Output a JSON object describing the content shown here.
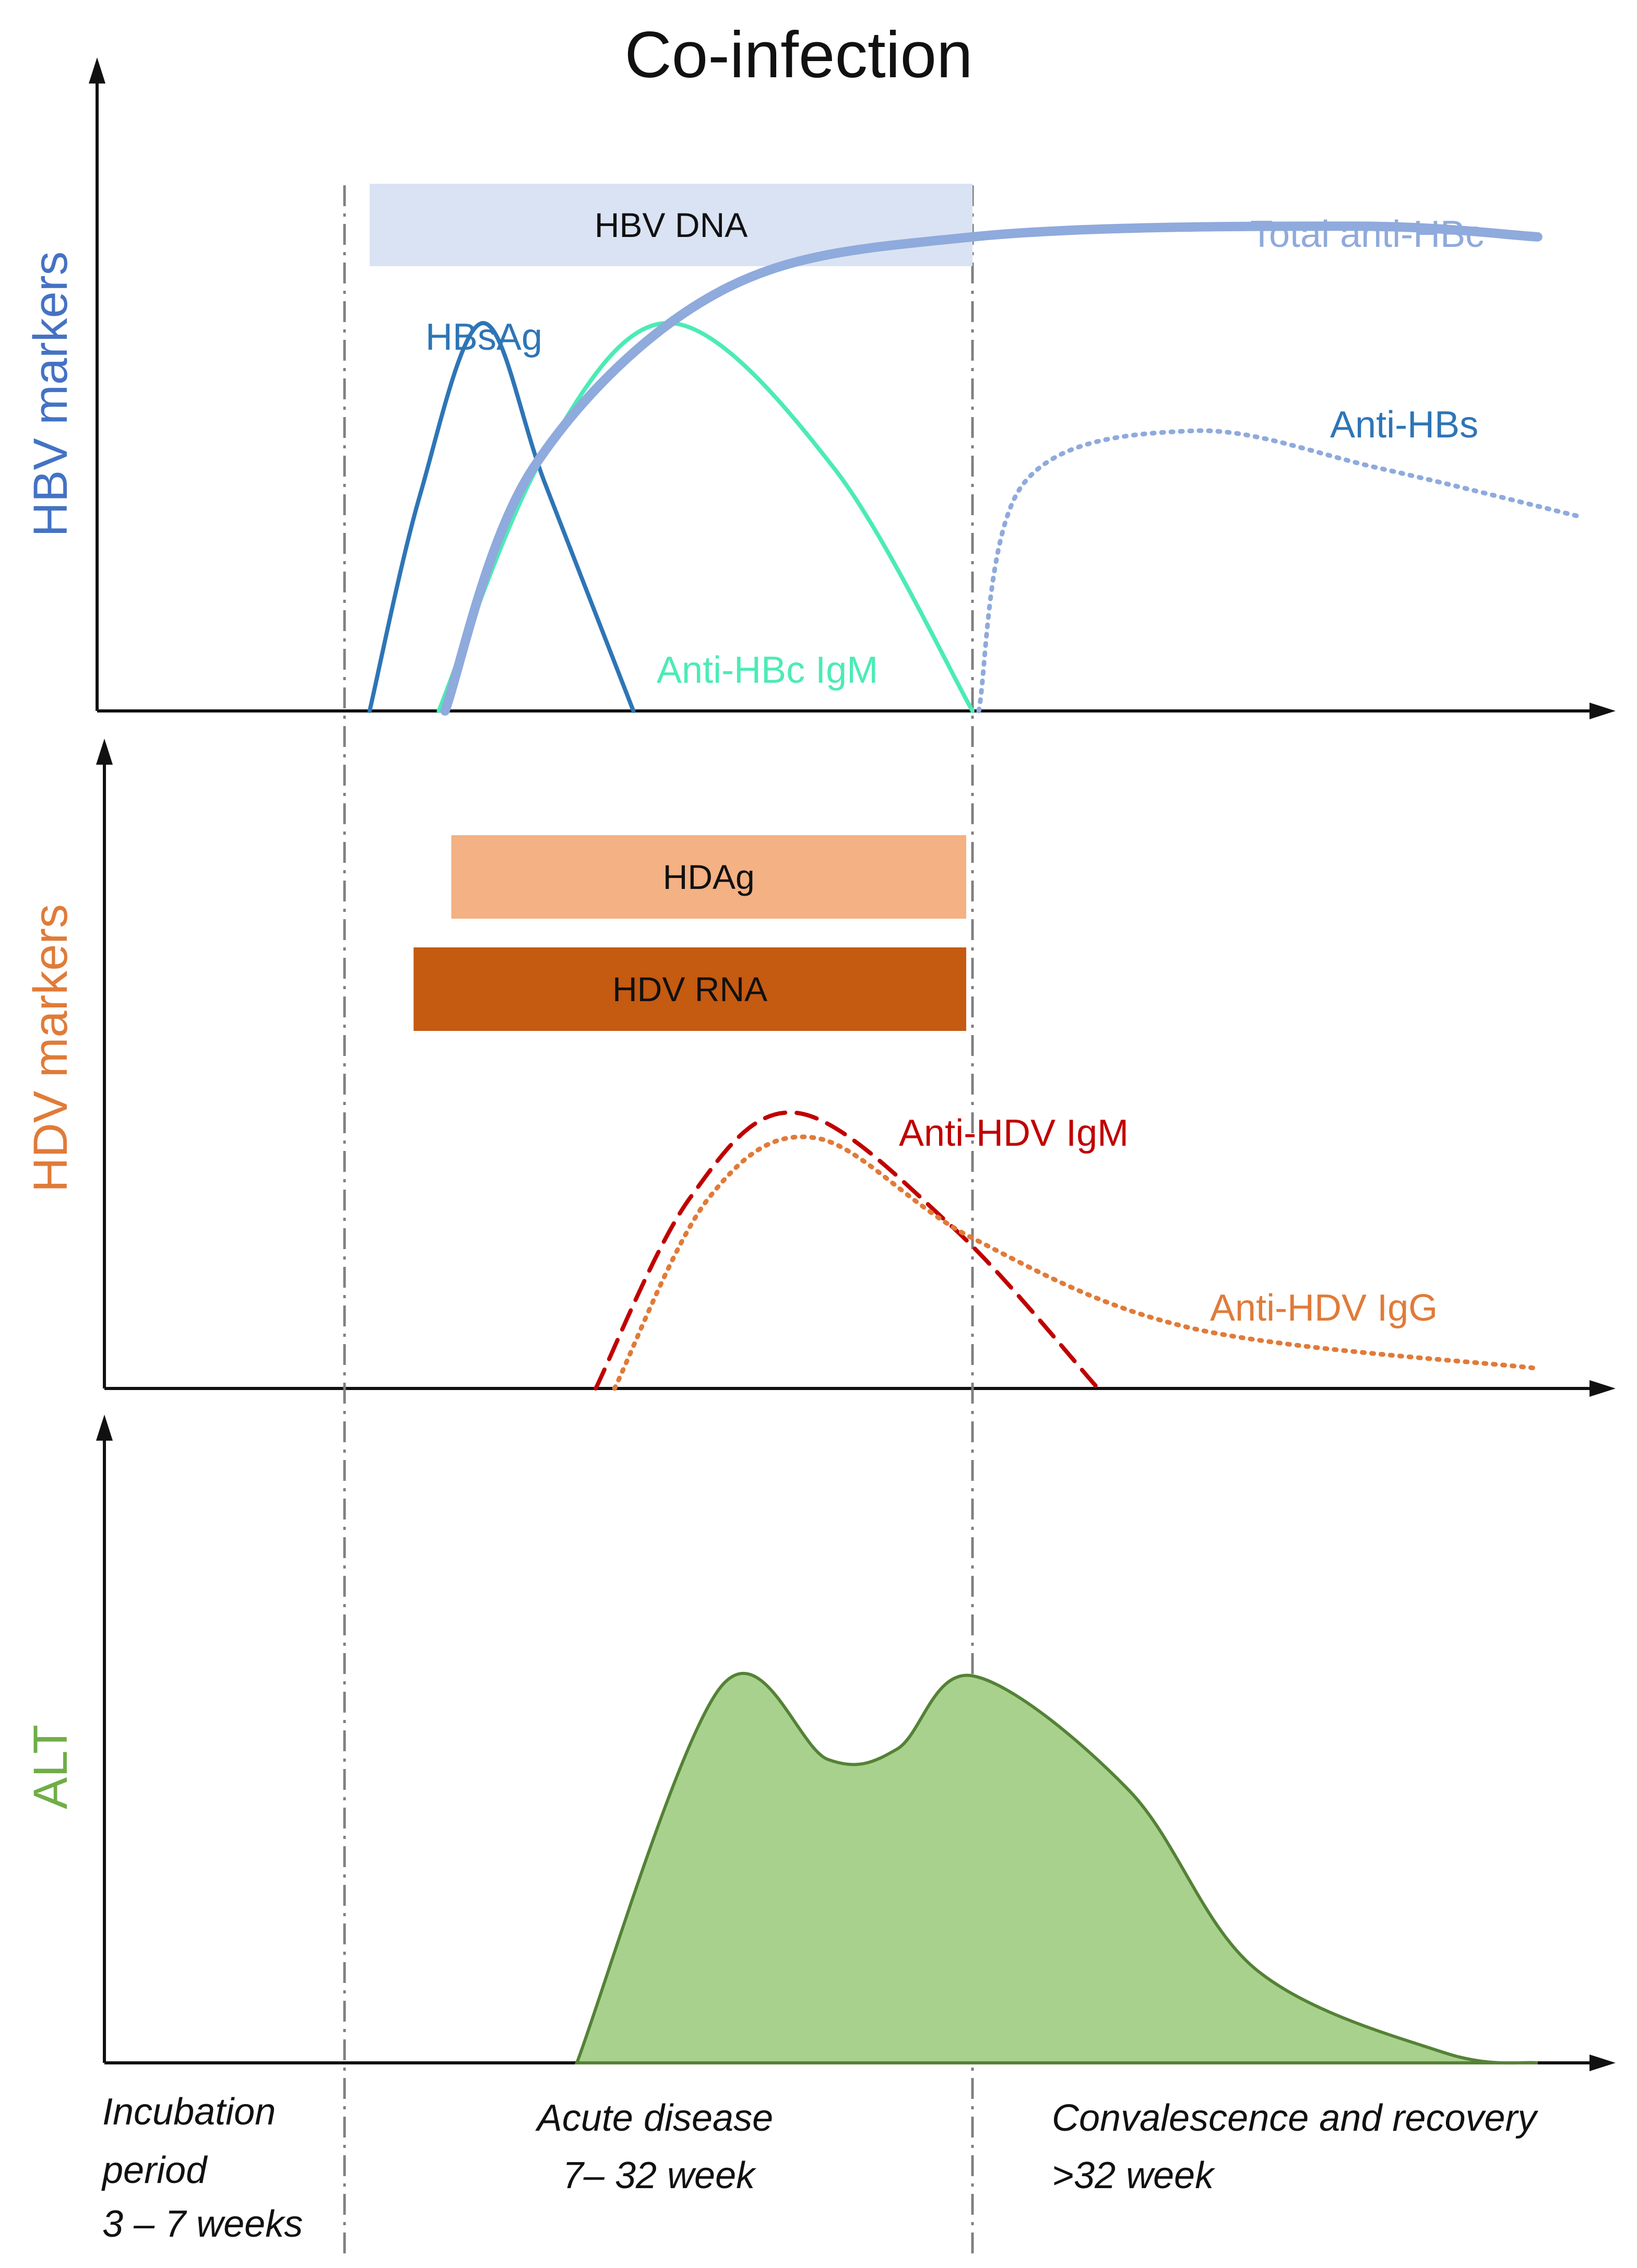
{
  "chart_data": {
    "type": "line",
    "title": "Co-infection",
    "phases": [
      {
        "name": "incubation",
        "lines": [
          "Incubation",
          "period",
          "3 – 7 weeks"
        ]
      },
      {
        "name": "acute",
        "lines": [
          "Acute disease",
          "7– 32 week"
        ]
      },
      {
        "name": "convalescence",
        "lines": [
          "Convalescence and recovery",
          ">32 week"
        ]
      }
    ],
    "panels": [
      {
        "ylabel": "HBV markers",
        "ylabel_color": "#4472C4",
        "bars": [
          {
            "label": "HBV DNA",
            "start": 0.04,
            "end": 1.0,
            "color": "#DAE3F3",
            "text_color": "#111111"
          }
        ],
        "series": [
          {
            "name": "HBsAg",
            "color": "#2E75B6",
            "style": "solid",
            "points": [
              [
                0.04,
                0
              ],
              [
                0.12,
                0.4
              ],
              [
                0.22,
                0.72
              ],
              [
                0.32,
                0.42
              ],
              [
                0.46,
                0
              ]
            ]
          },
          {
            "name": "Anti-HBc IgM",
            "color": "#4CEBB5",
            "style": "solid",
            "points": [
              [
                0.15,
                0
              ],
              [
                0.32,
                0.48
              ],
              [
                0.52,
                0.72
              ],
              [
                0.78,
                0.45
              ],
              [
                1.0,
                0
              ]
            ]
          },
          {
            "name": "Total anti-HBc",
            "color": "#8FAADC",
            "style": "thick",
            "points": [
              [
                0.16,
                0
              ],
              [
                0.3,
                0.45
              ],
              [
                0.6,
                0.78
              ],
              [
                1.0,
                0.88
              ],
              [
                1.6,
                0.9
              ],
              [
                1.9,
                0.88
              ]
            ]
          },
          {
            "name": "Anti-HBs",
            "color": "#8FAADC",
            "style": "dotted",
            "points": [
              [
                1.01,
                0
              ],
              [
                1.08,
                0.42
              ],
              [
                1.35,
                0.52
              ],
              [
                1.65,
                0.45
              ],
              [
                1.97,
                0.36
              ]
            ]
          }
        ]
      },
      {
        "ylabel": "HDV markers",
        "ylabel_color": "#E07B39",
        "bars": [
          {
            "label": "HDAg",
            "start": 0.17,
            "end": 0.99,
            "color": "#F4B183",
            "text_color": "#111111"
          },
          {
            "label": "HDV RNA",
            "start": 0.11,
            "end": 0.99,
            "color": "#C55A11",
            "text_color": "#111111"
          }
        ],
        "series": [
          {
            "name": "Anti-HDV IgM",
            "color": "#C00000",
            "style": "dashed",
            "points": [
              [
                0.4,
                0
              ],
              [
                0.55,
                0.38
              ],
              [
                0.72,
                0.55
              ],
              [
                0.97,
                0.32
              ],
              [
                1.2,
                0
              ]
            ]
          },
          {
            "name": "Anti-HDV IgG",
            "color": "#E07B39",
            "style": "dotted",
            "points": [
              [
                0.43,
                0
              ],
              [
                0.58,
                0.38
              ],
              [
                0.75,
                0.5
              ],
              [
                1.0,
                0.3
              ],
              [
                1.35,
                0.12
              ],
              [
                1.9,
                0.04
              ]
            ]
          }
        ]
      },
      {
        "ylabel": "ALT",
        "ylabel_color": "#70AD47",
        "fill_color": "#A9D18E",
        "stroke_color": "#548235",
        "series": [
          {
            "name": "ALT",
            "style": "area",
            "points": [
              [
                0.37,
                0
              ],
              [
                0.6,
                0.72
              ],
              [
                0.77,
                0.58
              ],
              [
                0.88,
                0.6
              ],
              [
                1.0,
                0.74
              ],
              [
                1.25,
                0.52
              ],
              [
                1.45,
                0.18
              ],
              [
                1.75,
                0.02
              ],
              [
                1.9,
                0
              ]
            ]
          }
        ]
      }
    ],
    "series_labels": {
      "Total anti-HBc": "Total anti-HBc",
      "HBsAg": "HBsAg",
      "Anti-HBs": "Anti-HBs",
      "Anti-HBc IgM": "Anti-HBc IgM",
      "Anti-HDV IgM": "Anti-HDV IgM",
      "Anti-HDV IgG": "Anti-HDV IgG"
    }
  }
}
